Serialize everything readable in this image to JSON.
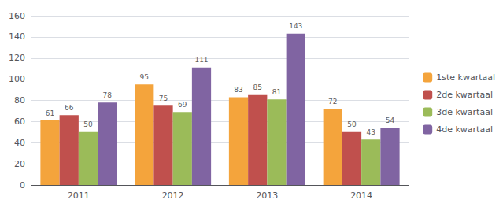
{
  "chart_data": {
    "type": "bar",
    "categories": [
      "2011",
      "2012",
      "2013",
      "2014"
    ],
    "series": [
      {
        "name": "1ste kwartaal",
        "color": "#F4A43C",
        "values": [
          61,
          95,
          83,
          72
        ]
      },
      {
        "name": "2de kwartaal",
        "color": "#C0504D",
        "values": [
          66,
          75,
          85,
          50
        ]
      },
      {
        "name": "3de kwartaal",
        "color": "#9BBB59",
        "values": [
          50,
          69,
          81,
          43
        ]
      },
      {
        "name": "4de kwartaal",
        "color": "#8064A2",
        "values": [
          78,
          111,
          143,
          54
        ]
      }
    ],
    "ylim": [
      0,
      160
    ],
    "yticks": [
      0,
      20,
      40,
      60,
      80,
      100,
      120,
      140,
      160
    ],
    "grid": true,
    "legend": "right",
    "data_labels": true
  }
}
